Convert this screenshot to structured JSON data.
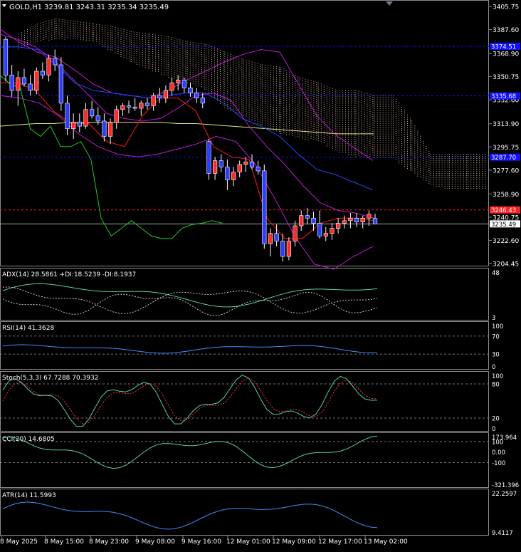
{
  "chart_data": {
    "type": "candlestick-with-indicators",
    "symbol_header": "GOLD,H1  3239.81 3243.31 3235.34 3235.49",
    "main": {
      "price_axis_labels": [
        "3405.75",
        "3387.60",
        "3368.90",
        "3350.75",
        "3332.60",
        "3313.90",
        "3295.75",
        "3277.60",
        "3258.90",
        "3240.75",
        "3222.60",
        "3204.45"
      ],
      "price_range": [
        3204.45,
        3405.75
      ],
      "current_price_label": "3235.49",
      "level_labels": [
        {
          "text": "3374.51",
          "value": 3374.51,
          "color": "#1010ff",
          "style": "dashed"
        },
        {
          "text": "3335.68",
          "value": 3335.68,
          "color": "#1010ff",
          "style": "dashed"
        },
        {
          "text": "3287.70",
          "value": 3287.7,
          "color": "#1010ff",
          "style": "dashed"
        },
        {
          "text": "3246.43",
          "value": 3246.43,
          "color": "#ff2020",
          "style": "dashed"
        }
      ],
      "candles": [
        [
          3380,
          3382,
          3347,
          3352
        ],
        [
          3352,
          3360,
          3335,
          3340
        ],
        [
          3340,
          3355,
          3328,
          3350
        ],
        [
          3350,
          3357,
          3343,
          3345
        ],
        [
          3345,
          3352,
          3336,
          3340
        ],
        [
          3340,
          3358,
          3337,
          3355
        ],
        [
          3355,
          3362,
          3349,
          3352
        ],
        [
          3352,
          3368,
          3347,
          3365
        ],
        [
          3365,
          3372,
          3355,
          3360
        ],
        [
          3360,
          3366,
          3324,
          3330
        ],
        [
          3330,
          3336,
          3305,
          3310
        ],
        [
          3310,
          3322,
          3302,
          3315
        ],
        [
          3315,
          3322,
          3307,
          3312
        ],
        [
          3312,
          3330,
          3310,
          3325
        ],
        [
          3325,
          3332,
          3318,
          3320
        ],
        [
          3320,
          3327,
          3313,
          3316
        ],
        [
          3316,
          3322,
          3300,
          3304
        ],
        [
          3304,
          3318,
          3298,
          3315
        ],
        [
          3315,
          3328,
          3310,
          3325
        ],
        [
          3325,
          3330,
          3320,
          3328
        ],
        [
          3328,
          3332,
          3322,
          3327
        ],
        [
          3327,
          3334,
          3324,
          3326
        ],
        [
          3326,
          3332,
          3320,
          3330
        ],
        [
          3330,
          3334,
          3325,
          3328
        ],
        [
          3328,
          3338,
          3324,
          3336
        ],
        [
          3336,
          3342,
          3330,
          3334
        ],
        [
          3334,
          3344,
          3330,
          3340
        ],
        [
          3340,
          3350,
          3336,
          3346
        ],
        [
          3346,
          3352,
          3340,
          3348
        ],
        [
          3348,
          3350,
          3338,
          3342
        ],
        [
          3342,
          3346,
          3335,
          3338
        ],
        [
          3338,
          3342,
          3330,
          3334
        ],
        [
          3334,
          3338,
          3326,
          3330
        ],
        [
          3300,
          3302,
          3270,
          3275
        ],
        [
          3275,
          3288,
          3270,
          3285
        ],
        [
          3285,
          3290,
          3276,
          3280
        ],
        [
          3280,
          3286,
          3262,
          3270
        ],
        [
          3270,
          3280,
          3265,
          3276
        ],
        [
          3276,
          3285,
          3272,
          3282
        ],
        [
          3282,
          3288,
          3276,
          3284
        ],
        [
          3284,
          3290,
          3278,
          3280
        ],
        [
          3280,
          3285,
          3274,
          3277
        ],
        [
          3277,
          3282,
          3216,
          3220
        ],
        [
          3220,
          3232,
          3210,
          3228
        ],
        [
          3228,
          3235,
          3218,
          3222
        ],
        [
          3222,
          3228,
          3206,
          3210
        ],
        [
          3210,
          3225,
          3207,
          3222
        ],
        [
          3222,
          3238,
          3218,
          3234
        ],
        [
          3234,
          3246,
          3230,
          3242
        ],
        [
          3242,
          3248,
          3235,
          3240
        ],
        [
          3240,
          3245,
          3230,
          3236
        ],
        [
          3236,
          3246,
          3224,
          3226
        ],
        [
          3226,
          3233,
          3222,
          3228
        ],
        [
          3228,
          3236,
          3223,
          3232
        ],
        [
          3232,
          3240,
          3228,
          3236
        ],
        [
          3236,
          3242,
          3232,
          3238
        ],
        [
          3238,
          3244,
          3232,
          3240
        ],
        [
          3240,
          3244,
          3233,
          3237
        ],
        [
          3237,
          3242,
          3232,
          3240
        ],
        [
          3240,
          3246,
          3234,
          3243
        ],
        [
          3239.81,
          3243.31,
          3235.34,
          3235.49
        ]
      ]
    },
    "panels": [
      {
        "title": "ADX(14) 28.5861 +DI:18.5239 -DI:8.1937",
        "scale_labels": [
          "48",
          "3"
        ],
        "range": [
          3,
          48
        ]
      },
      {
        "title": "RSI(14) 41.3628",
        "scale_labels": [
          "100",
          "70",
          "30",
          "0"
        ],
        "range": [
          0,
          100
        ],
        "levels": [
          70,
          30
        ]
      },
      {
        "title": "Stoch(5,3,3) 67.7288 70.3932",
        "scale_labels": [
          "100",
          "80",
          "20",
          "0"
        ],
        "range": [
          0,
          100
        ],
        "levels": [
          80,
          20
        ]
      },
      {
        "title": "CCI(20) 14.6805",
        "scale_labels": [
          "173.964",
          "100",
          "0.00",
          "-100",
          "-321.396"
        ],
        "range": [
          -321.396,
          173.964
        ],
        "levels": [
          100,
          -100
        ]
      },
      {
        "title": "ATR(14) 11.5993",
        "scale_labels": [
          "22.2597",
          "9.4117"
        ],
        "range": [
          9.4117,
          22.2597
        ]
      }
    ],
    "time_labels": [
      "8 May 2025",
      "8 May 15:00",
      "8 May 23:00",
      "9 May 08:00",
      "9 May 16:00",
      "12 May 01:00",
      "12 May 09:00",
      "12 May 17:00",
      "13 May 02:00"
    ],
    "colors": {
      "bull": "#ff2a2a",
      "bear": "#2b3dff",
      "wick": "#ffffff",
      "grid": "#5a5a5a",
      "text": "#ffffff",
      "ma_yellow": "#e6e37a",
      "bands_magenta": "#c21ad9",
      "tenkan_red": "#ff1a1a",
      "kijun_blue": "#1e4dff",
      "chikou_green": "#22cc22",
      "cloud_dots": "#ffd8c0",
      "ind_line": "#3f8cff",
      "signal_red": "#ff3333",
      "adx_line": "#55d3a6"
    }
  }
}
